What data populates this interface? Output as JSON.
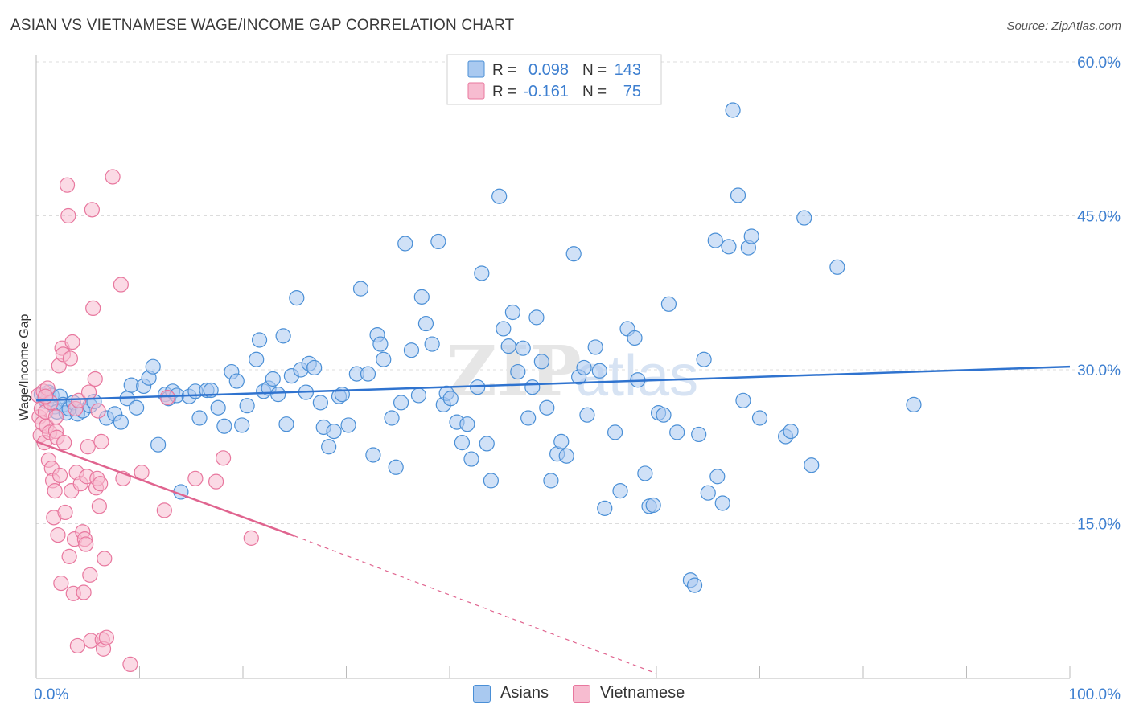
{
  "title": "ASIAN VS VIETNAMESE WAGE/INCOME GAP CORRELATION CHART",
  "source": "Source: ZipAtlas.com",
  "watermark": "ZIPatlas",
  "colors": {
    "blue": "#4a8fd6",
    "blue_fill": "#a9c9f0",
    "blue_line": "#2f73cf",
    "pink": "#e8779e",
    "pink_fill": "#f7bcd0",
    "pink_line": "#e0648f",
    "axis_text": "#3d7fd0",
    "grid": "#dcdcdc"
  },
  "legend_top": {
    "rows": [
      {
        "r_label": "R =",
        "r_value": "0.098",
        "n_label": "N =",
        "n_value": "143"
      },
      {
        "r_label": "R =",
        "r_value": "-0.161",
        "n_label": "N =",
        "n_value": "75"
      }
    ]
  },
  "legend_bottom": [
    "Asians",
    "Vietnamese"
  ],
  "chart_data": {
    "type": "scatter",
    "title": "ASIAN VS VIETNAMESE WAGE/INCOME GAP CORRELATION CHART",
    "xlabel": "",
    "ylabel": "Wage/Income Gap",
    "xlim": [
      0,
      100
    ],
    "ylim": [
      0,
      60
    ],
    "x_tick_labels": [
      "0.0%",
      "100.0%"
    ],
    "y_ticks": [
      15,
      30,
      45,
      60
    ],
    "y_tick_labels": [
      "15.0%",
      "30.0%",
      "45.0%",
      "60.0%"
    ],
    "grid": true,
    "legend_position": "top-center",
    "series": [
      {
        "name": "Asians",
        "r": 0.098,
        "n": 143,
        "trend": {
          "x": [
            0,
            100
          ],
          "y": [
            27.0,
            30.3
          ]
        },
        "points": [
          [
            0.5,
            27.6
          ],
          [
            0.8,
            27.2
          ],
          [
            1.0,
            26.9
          ],
          [
            1.2,
            27.8
          ],
          [
            1.5,
            27.5
          ],
          [
            1.8,
            26.4
          ],
          [
            2.0,
            25.9
          ],
          [
            2.3,
            27.4
          ],
          [
            2.6,
            26.6
          ],
          [
            2.9,
            25.8
          ],
          [
            3.2,
            26.2
          ],
          [
            3.6,
            26.8
          ],
          [
            4.0,
            25.7
          ],
          [
            4.5,
            26.0
          ],
          [
            5.2,
            26.5
          ],
          [
            5.6,
            26.9
          ],
          [
            6.8,
            25.3
          ],
          [
            7.6,
            25.7
          ],
          [
            8.2,
            24.9
          ],
          [
            8.8,
            27.2
          ],
          [
            9.2,
            28.5
          ],
          [
            9.7,
            26.3
          ],
          [
            10.4,
            28.4
          ],
          [
            10.9,
            29.2
          ],
          [
            11.3,
            30.3
          ],
          [
            11.8,
            22.7
          ],
          [
            12.5,
            27.6
          ],
          [
            12.8,
            27.2
          ],
          [
            13.2,
            27.9
          ],
          [
            13.6,
            27.5
          ],
          [
            14.0,
            18.1
          ],
          [
            14.8,
            27.4
          ],
          [
            15.4,
            27.9
          ],
          [
            15.8,
            25.3
          ],
          [
            16.5,
            28.0
          ],
          [
            16.9,
            28.0
          ],
          [
            17.6,
            26.3
          ],
          [
            18.2,
            24.5
          ],
          [
            18.9,
            29.8
          ],
          [
            19.4,
            28.9
          ],
          [
            19.9,
            24.6
          ],
          [
            20.4,
            26.5
          ],
          [
            21.3,
            31.0
          ],
          [
            21.6,
            32.9
          ],
          [
            22.0,
            27.9
          ],
          [
            22.5,
            28.2
          ],
          [
            22.9,
            29.1
          ],
          [
            23.4,
            27.6
          ],
          [
            23.9,
            33.3
          ],
          [
            24.2,
            24.7
          ],
          [
            24.7,
            29.4
          ],
          [
            25.2,
            37.0
          ],
          [
            25.6,
            30.0
          ],
          [
            26.1,
            27.8
          ],
          [
            26.4,
            30.6
          ],
          [
            26.9,
            30.2
          ],
          [
            27.5,
            26.8
          ],
          [
            27.8,
            24.4
          ],
          [
            28.3,
            22.5
          ],
          [
            28.8,
            24.0
          ],
          [
            29.3,
            27.4
          ],
          [
            29.6,
            27.6
          ],
          [
            30.2,
            24.6
          ],
          [
            31.0,
            29.6
          ],
          [
            31.4,
            37.9
          ],
          [
            32.1,
            29.6
          ],
          [
            32.6,
            21.7
          ],
          [
            33.0,
            33.4
          ],
          [
            33.3,
            32.5
          ],
          [
            33.6,
            31.0
          ],
          [
            34.4,
            25.3
          ],
          [
            34.8,
            20.5
          ],
          [
            35.3,
            26.8
          ],
          [
            35.7,
            42.3
          ],
          [
            36.3,
            31.9
          ],
          [
            37.0,
            27.5
          ],
          [
            37.3,
            37.1
          ],
          [
            37.7,
            34.5
          ],
          [
            38.3,
            32.5
          ],
          [
            38.9,
            42.5
          ],
          [
            39.4,
            26.6
          ],
          [
            39.7,
            27.7
          ],
          [
            40.1,
            27.2
          ],
          [
            40.7,
            24.9
          ],
          [
            41.2,
            22.9
          ],
          [
            41.7,
            24.7
          ],
          [
            42.1,
            21.3
          ],
          [
            42.7,
            28.3
          ],
          [
            43.1,
            39.4
          ],
          [
            43.6,
            22.8
          ],
          [
            44.0,
            19.2
          ],
          [
            44.8,
            46.9
          ],
          [
            45.2,
            34.0
          ],
          [
            45.7,
            32.3
          ],
          [
            46.1,
            35.6
          ],
          [
            46.6,
            29.8
          ],
          [
            47.1,
            32.1
          ],
          [
            47.6,
            25.3
          ],
          [
            48.0,
            28.3
          ],
          [
            48.4,
            35.1
          ],
          [
            48.9,
            30.8
          ],
          [
            49.4,
            26.3
          ],
          [
            49.8,
            19.2
          ],
          [
            50.4,
            21.8
          ],
          [
            50.8,
            23.0
          ],
          [
            51.3,
            21.6
          ],
          [
            52.0,
            41.3
          ],
          [
            52.5,
            29.3
          ],
          [
            53.0,
            30.2
          ],
          [
            53.3,
            25.6
          ],
          [
            54.1,
            32.2
          ],
          [
            54.5,
            29.9
          ],
          [
            55.0,
            16.5
          ],
          [
            56.0,
            23.9
          ],
          [
            56.5,
            18.2
          ],
          [
            57.2,
            34.0
          ],
          [
            57.9,
            33.1
          ],
          [
            58.2,
            29.0
          ],
          [
            58.9,
            19.9
          ],
          [
            59.3,
            16.7
          ],
          [
            59.7,
            16.8
          ],
          [
            60.2,
            25.8
          ],
          [
            60.7,
            25.6
          ],
          [
            61.2,
            36.4
          ],
          [
            62.0,
            23.9
          ],
          [
            63.3,
            9.5
          ],
          [
            63.7,
            9.0
          ],
          [
            64.1,
            23.7
          ],
          [
            64.6,
            31.0
          ],
          [
            65.0,
            18.0
          ],
          [
            65.7,
            42.6
          ],
          [
            65.9,
            19.6
          ],
          [
            66.4,
            17.0
          ],
          [
            67.0,
            42.0
          ],
          [
            67.4,
            55.3
          ],
          [
            67.9,
            47.0
          ],
          [
            68.4,
            27.0
          ],
          [
            68.9,
            41.9
          ],
          [
            69.2,
            43.0
          ],
          [
            70.0,
            25.3
          ],
          [
            72.5,
            23.5
          ],
          [
            75.0,
            20.7
          ],
          [
            74.3,
            44.8
          ],
          [
            77.5,
            40.0
          ],
          [
            84.9,
            26.6
          ],
          [
            73.0,
            24.0
          ]
        ]
      },
      {
        "name": "Vietnamese",
        "r": -0.161,
        "n": 75,
        "trend": {
          "x": [
            0,
            25
          ],
          "y": [
            23.0,
            13.8
          ]
        },
        "trend_extrapolated": {
          "x": [
            25,
            60
          ],
          "y": [
            13.8,
            0.4
          ]
        },
        "points": [
          [
            0.2,
            27.5
          ],
          [
            0.3,
            25.4
          ],
          [
            0.4,
            23.6
          ],
          [
            0.5,
            26.2
          ],
          [
            0.6,
            24.8
          ],
          [
            0.7,
            27.9
          ],
          [
            0.8,
            22.9
          ],
          [
            0.9,
            25.9
          ],
          [
            1.0,
            24.5
          ],
          [
            1.1,
            28.2
          ],
          [
            1.2,
            21.2
          ],
          [
            1.3,
            23.9
          ],
          [
            1.4,
            26.8
          ],
          [
            1.5,
            20.4
          ],
          [
            1.6,
            19.2
          ],
          [
            1.7,
            15.6
          ],
          [
            1.8,
            18.2
          ],
          [
            1.9,
            24.0
          ],
          [
            2.0,
            23.4
          ],
          [
            2.1,
            13.9
          ],
          [
            2.2,
            30.4
          ],
          [
            2.3,
            19.7
          ],
          [
            2.4,
            9.2
          ],
          [
            2.5,
            32.1
          ],
          [
            2.6,
            31.5
          ],
          [
            2.7,
            22.9
          ],
          [
            2.8,
            16.1
          ],
          [
            3.0,
            48.0
          ],
          [
            3.1,
            45.0
          ],
          [
            3.2,
            11.8
          ],
          [
            3.3,
            31.1
          ],
          [
            3.4,
            18.2
          ],
          [
            3.5,
            32.7
          ],
          [
            3.6,
            8.2
          ],
          [
            3.7,
            13.5
          ],
          [
            3.8,
            26.2
          ],
          [
            3.9,
            20.0
          ],
          [
            4.0,
            3.1
          ],
          [
            4.1,
            27.0
          ],
          [
            4.3,
            18.9
          ],
          [
            4.5,
            14.2
          ],
          [
            4.6,
            8.3
          ],
          [
            4.7,
            13.5
          ],
          [
            4.8,
            13.0
          ],
          [
            4.9,
            19.6
          ],
          [
            5.0,
            22.5
          ],
          [
            5.1,
            27.8
          ],
          [
            5.2,
            10.0
          ],
          [
            5.3,
            3.6
          ],
          [
            5.4,
            45.6
          ],
          [
            5.5,
            36.0
          ],
          [
            5.7,
            29.1
          ],
          [
            5.8,
            18.5
          ],
          [
            5.9,
            19.4
          ],
          [
            6.0,
            26.0
          ],
          [
            6.1,
            16.7
          ],
          [
            6.2,
            18.9
          ],
          [
            6.3,
            23.0
          ],
          [
            6.4,
            3.7
          ],
          [
            6.5,
            2.8
          ],
          [
            6.6,
            11.6
          ],
          [
            6.8,
            3.9
          ],
          [
            7.4,
            48.8
          ],
          [
            8.2,
            38.3
          ],
          [
            8.4,
            19.4
          ],
          [
            9.1,
            1.3
          ],
          [
            10.2,
            20.0
          ],
          [
            12.4,
            16.3
          ],
          [
            12.7,
            27.3
          ],
          [
            15.4,
            19.4
          ],
          [
            17.4,
            19.1
          ],
          [
            18.1,
            21.4
          ],
          [
            20.8,
            13.6
          ],
          [
            0.9,
            27.4
          ],
          [
            1.9,
            25.4
          ]
        ]
      }
    ]
  }
}
